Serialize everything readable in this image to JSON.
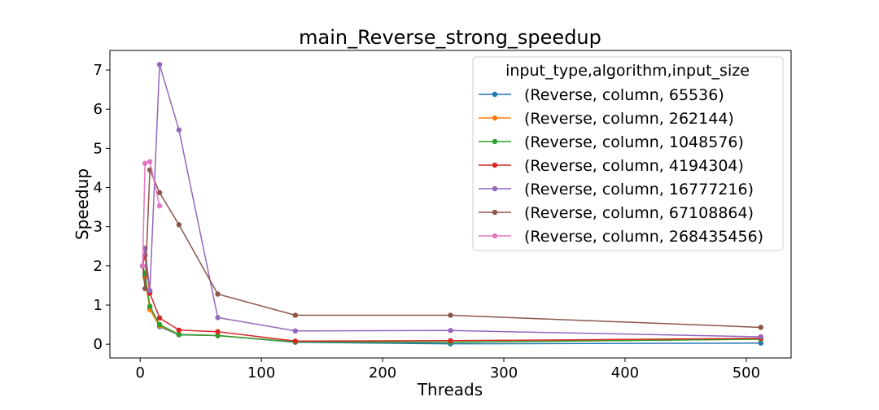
{
  "chart_data": {
    "type": "line",
    "title": "main_Reverse_strong_speedup",
    "xlabel": "Threads",
    "ylabel": "Speedup",
    "xlim": [
      -25,
      537
    ],
    "ylim": [
      -0.35,
      7.5
    ],
    "xticks": [
      0,
      100,
      200,
      300,
      400,
      500
    ],
    "yticks": [
      0,
      1,
      2,
      3,
      4,
      5,
      6,
      7
    ],
    "grid": false,
    "legend": {
      "title": "input_type,algorithm,input_size",
      "placement": "top-right"
    },
    "series": [
      {
        "name": "(Reverse, column, 65536)",
        "color": "#1f77b4",
        "x": [
          2,
          4,
          8,
          16,
          32,
          64,
          128,
          256,
          512
        ],
        "y": [
          2.0,
          1.75,
          0.92,
          0.45,
          0.24,
          0.22,
          0.05,
          0.01,
          0.03
        ]
      },
      {
        "name": "(Reverse, column, 262144)",
        "color": "#ff7f0e",
        "x": [
          2,
          4,
          8,
          16,
          32,
          64,
          128,
          256,
          512
        ],
        "y": [
          2.0,
          1.7,
          0.88,
          0.47,
          0.25,
          0.22,
          0.06,
          0.05,
          0.13
        ]
      },
      {
        "name": "(Reverse, column, 1048576)",
        "color": "#2ca02c",
        "x": [
          2,
          4,
          8,
          16,
          32,
          64,
          128,
          256,
          512
        ],
        "y": [
          2.0,
          1.8,
          0.97,
          0.5,
          0.25,
          0.22,
          0.06,
          0.05,
          0.13
        ]
      },
      {
        "name": "(Reverse, column, 4194304)",
        "color": "#d62728",
        "x": [
          2,
          4,
          8,
          16,
          32,
          64,
          128,
          256,
          512
        ],
        "y": [
          2.0,
          2.27,
          1.3,
          0.67,
          0.36,
          0.32,
          0.08,
          0.09,
          0.15
        ]
      },
      {
        "name": "(Reverse, column, 16777216)",
        "color": "#9467bd",
        "x": [
          2,
          4,
          8,
          16,
          32,
          64,
          128,
          256,
          512
        ],
        "y": [
          2.0,
          2.45,
          1.37,
          7.14,
          5.47,
          0.68,
          0.34,
          0.35,
          0.19
        ]
      },
      {
        "name": "(Reverse, column, 67108864)",
        "color": "#8c564b",
        "x": [
          2,
          4,
          8,
          16,
          32,
          64,
          128,
          256,
          512
        ],
        "y": [
          2.0,
          1.42,
          4.45,
          3.87,
          3.05,
          1.28,
          0.74,
          0.74,
          0.43
        ]
      },
      {
        "name": "(Reverse, column, 268435456)",
        "color": "#e377c2",
        "x": [
          2,
          4,
          8,
          16
        ],
        "y": [
          2.0,
          4.62,
          4.66,
          3.53
        ]
      }
    ]
  }
}
